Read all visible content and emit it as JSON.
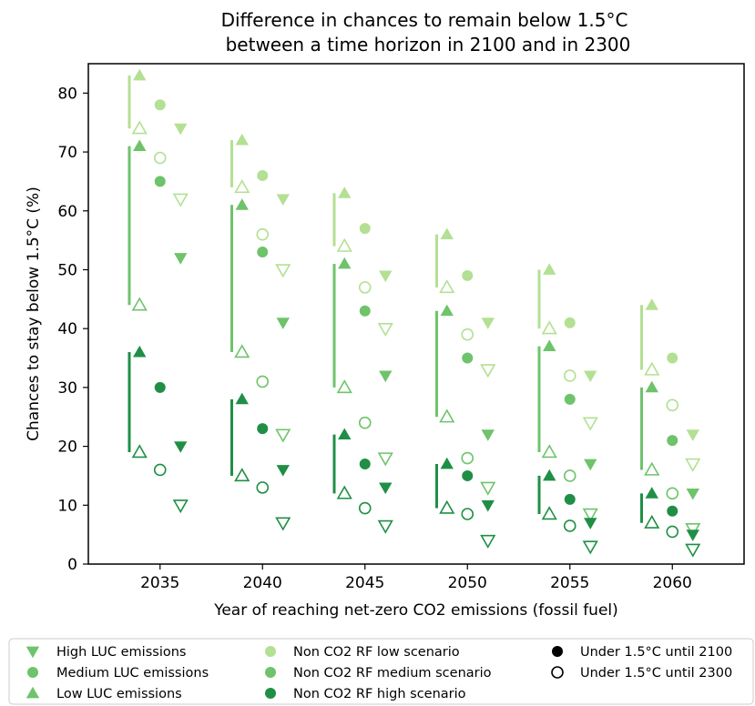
{
  "colors": {
    "low": "#b3e092",
    "medium": "#6fc36b",
    "high": "#1f8f46",
    "legend_black": "#000000"
  },
  "chart_data": {
    "type": "scatter",
    "title_lines": [
      "Difference in chances to remain below 1.5°C",
      "between a time horizon in 2100 and in 2300"
    ],
    "xlabel": "Year of reaching net-zero CO2 emissions (fossil fuel)",
    "ylabel": "Chances to stay below 1.5°C (%)",
    "xlim": [
      2031.5,
      2063.5
    ],
    "ylim": [
      0,
      85
    ],
    "x_ticks": [
      2035,
      2040,
      2045,
      2050,
      2055,
      2060
    ],
    "y_ticks": [
      0,
      10,
      20,
      30,
      40,
      50,
      60,
      70,
      80
    ],
    "marker_offsets": {
      "low_luc": -1,
      "medium_luc": 0,
      "high_luc": 1
    },
    "bar_offset": -1.5,
    "groups": [
      {
        "year": 2035,
        "low": {
          "luc_low": [
            83,
            74
          ],
          "luc_medium": [
            78,
            69
          ],
          "luc_high": [
            74,
            62
          ]
        },
        "medium": {
          "luc_low": [
            71,
            44
          ],
          "luc_medium": [
            65,
            null
          ],
          "luc_high": [
            52,
            null
          ]
        },
        "high": {
          "luc_low": [
            36,
            19
          ],
          "luc_medium": [
            30,
            16
          ],
          "luc_high": [
            20,
            10
          ]
        }
      },
      {
        "year": 2040,
        "low": {
          "luc_low": [
            72,
            64
          ],
          "luc_medium": [
            66,
            56
          ],
          "luc_high": [
            62,
            50
          ]
        },
        "medium": {
          "luc_low": [
            61,
            36
          ],
          "luc_medium": [
            53,
            31
          ],
          "luc_high": [
            41,
            22
          ]
        },
        "high": {
          "luc_low": [
            28,
            15
          ],
          "luc_medium": [
            23,
            13
          ],
          "luc_high": [
            16,
            7
          ]
        }
      },
      {
        "year": 2045,
        "low": {
          "luc_low": [
            63,
            54
          ],
          "luc_medium": [
            57,
            47
          ],
          "luc_high": [
            49,
            40
          ]
        },
        "medium": {
          "luc_low": [
            51,
            30
          ],
          "luc_medium": [
            43,
            24
          ],
          "luc_high": [
            32,
            18
          ]
        },
        "high": {
          "luc_low": [
            22,
            12
          ],
          "luc_medium": [
            17,
            9.5
          ],
          "luc_high": [
            13,
            6.5
          ]
        }
      },
      {
        "year": 2050,
        "low": {
          "luc_low": [
            56,
            47
          ],
          "luc_medium": [
            49,
            39
          ],
          "luc_high": [
            41,
            33
          ]
        },
        "medium": {
          "luc_low": [
            43,
            25
          ],
          "luc_medium": [
            35,
            18
          ],
          "luc_high": [
            22,
            13
          ]
        },
        "high": {
          "luc_low": [
            17,
            9.5
          ],
          "luc_medium": [
            15,
            8.5
          ],
          "luc_high": [
            10,
            4
          ]
        }
      },
      {
        "year": 2055,
        "low": {
          "luc_low": [
            50,
            40
          ],
          "luc_medium": [
            41,
            32
          ],
          "luc_high": [
            32,
            24
          ]
        },
        "medium": {
          "luc_low": [
            37,
            19
          ],
          "luc_medium": [
            28,
            15
          ],
          "luc_high": [
            17,
            8.5
          ]
        },
        "high": {
          "luc_low": [
            15,
            8.5
          ],
          "luc_medium": [
            11,
            6.5
          ],
          "luc_high": [
            7,
            3
          ]
        }
      },
      {
        "year": 2060,
        "low": {
          "luc_low": [
            44,
            33
          ],
          "luc_medium": [
            35,
            27
          ],
          "luc_high": [
            22,
            17
          ]
        },
        "medium": {
          "luc_low": [
            30,
            16
          ],
          "luc_medium": [
            21,
            12
          ],
          "luc_high": [
            12,
            6
          ]
        },
        "high": {
          "luc_low": [
            12,
            7
          ],
          "luc_medium": [
            9,
            5.5
          ],
          "luc_high": [
            5,
            2.5
          ]
        }
      }
    ],
    "legend": {
      "col1": [
        "High LUC emissions",
        "Medium LUC emissions",
        "Low LUC emissions"
      ],
      "col2": [
        "Non CO2 RF low scenario",
        "Non CO2 RF medium scenario",
        "Non CO2 RF high scenario"
      ],
      "col3": [
        "Under 1.5°C until 2100",
        "Under 1.5°C until 2300"
      ]
    }
  }
}
